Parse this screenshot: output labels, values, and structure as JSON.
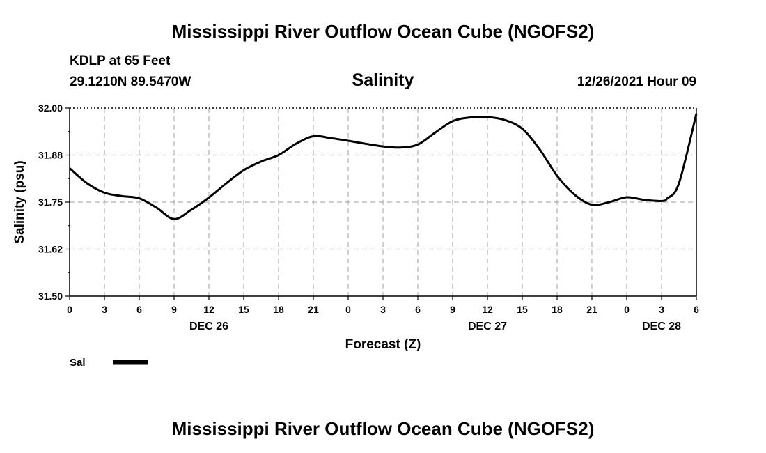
{
  "header": {
    "title": "Mississippi River Outflow Ocean Cube (NGOFS2)",
    "station": "KDLP at 65 Feet",
    "coords": "29.1210N  89.5470W",
    "variable": "Salinity",
    "datetime": "12/26/2021 Hour 09"
  },
  "footer": {
    "title": "Mississippi River Outflow Ocean Cube (NGOFS2)"
  },
  "colors": {
    "line": "#000000",
    "grid": "#b0b0b0",
    "axis": "#000000"
  },
  "chart_data": {
    "type": "line",
    "title": "Salinity",
    "xlabel": "Forecast (Z)",
    "ylabel": "Salinity (psu)",
    "ylim": [
      31.5,
      32.0
    ],
    "yticks": [
      "32.00",
      "31.88",
      "31.75",
      "31.62",
      "31.50"
    ],
    "ytick_values": [
      32.0,
      31.875,
      31.75,
      31.625,
      31.5
    ],
    "xlim": [
      0,
      54
    ],
    "xtick_labels": [
      "0",
      "3",
      "6",
      "9",
      "12",
      "15",
      "18",
      "21",
      "0",
      "3",
      "6",
      "9",
      "12",
      "15",
      "18",
      "21",
      "0",
      "3",
      "6"
    ],
    "day_labels": [
      {
        "label": "DEC 26",
        "at": 12
      },
      {
        "label": "DEC 27",
        "at": 36
      },
      {
        "label": "DEC 28",
        "at": 51
      }
    ],
    "grid": true,
    "legend": {
      "placement": "bottom-left",
      "label": "Sal"
    },
    "series": [
      {
        "name": "Sal",
        "x": [
          0,
          1.5,
          3,
          4.5,
          6,
          7.5,
          9,
          10.5,
          12,
          13.5,
          15,
          16.5,
          18,
          19.5,
          21,
          22.5,
          24,
          25.5,
          27,
          28.5,
          30,
          31.5,
          33,
          34.5,
          36,
          37.5,
          39,
          40.5,
          42,
          43.5,
          45,
          46.5,
          48,
          49.5,
          51,
          51.5,
          52.5,
          54
        ],
        "y": [
          31.84,
          31.8,
          31.775,
          31.766,
          31.76,
          31.735,
          31.705,
          31.73,
          31.762,
          31.8,
          31.835,
          31.858,
          31.875,
          31.905,
          31.925,
          31.92,
          31.913,
          31.905,
          31.898,
          31.895,
          31.903,
          31.935,
          31.965,
          31.975,
          31.976,
          31.968,
          31.945,
          31.89,
          31.82,
          31.77,
          31.743,
          31.75,
          31.763,
          31.756,
          31.753,
          31.76,
          31.8,
          31.985
        ]
      }
    ]
  }
}
